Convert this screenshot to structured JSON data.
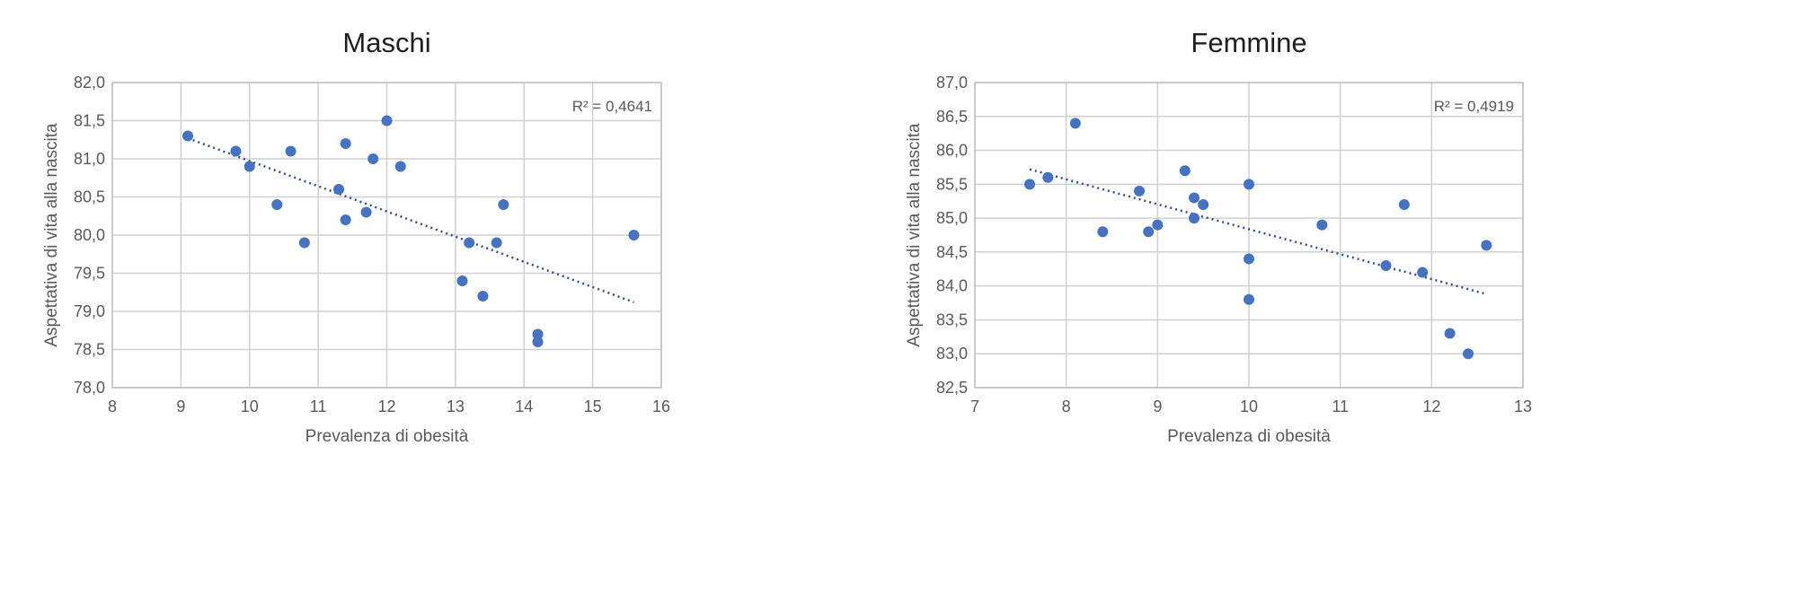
{
  "colors": {
    "points": "#4472c4",
    "trendline": "#2e4e8c",
    "grid": "#d0d0d0"
  },
  "chart_data": [
    {
      "type": "scatter",
      "title": "Maschi",
      "xlabel": "Prevalenza di obesità",
      "ylabel": "Aspettativa di vita alla nascita",
      "xlim": [
        8,
        16
      ],
      "ylim": [
        78,
        82
      ],
      "x_ticks": [
        "8",
        "9",
        "10",
        "11",
        "12",
        "13",
        "14",
        "15",
        "16"
      ],
      "y_ticks": [
        "78,0",
        "78,5",
        "79,0",
        "79,5",
        "80,0",
        "80,5",
        "81,0",
        "81,5",
        "82,0"
      ],
      "grid": true,
      "r2_label": "R² = 0,4641",
      "trendline": {
        "x": [
          9.1,
          15.6
        ],
        "y": [
          81.27,
          79.12
        ]
      },
      "points": [
        {
          "x": 9.1,
          "y": 81.3
        },
        {
          "x": 9.8,
          "y": 81.1
        },
        {
          "x": 10.0,
          "y": 80.9
        },
        {
          "x": 10.4,
          "y": 80.4
        },
        {
          "x": 10.6,
          "y": 81.1
        },
        {
          "x": 10.8,
          "y": 79.9
        },
        {
          "x": 11.3,
          "y": 80.6
        },
        {
          "x": 11.4,
          "y": 81.2
        },
        {
          "x": 11.4,
          "y": 80.2
        },
        {
          "x": 11.7,
          "y": 80.3
        },
        {
          "x": 11.8,
          "y": 81.0
        },
        {
          "x": 12.0,
          "y": 81.5
        },
        {
          "x": 12.2,
          "y": 80.9
        },
        {
          "x": 13.1,
          "y": 79.4
        },
        {
          "x": 13.2,
          "y": 79.9
        },
        {
          "x": 13.4,
          "y": 79.2
        },
        {
          "x": 13.6,
          "y": 79.9
        },
        {
          "x": 13.7,
          "y": 80.4
        },
        {
          "x": 14.2,
          "y": 78.7
        },
        {
          "x": 14.2,
          "y": 78.6
        },
        {
          "x": 15.6,
          "y": 80.0
        }
      ]
    },
    {
      "type": "scatter",
      "title": "Femmine",
      "xlabel": "Prevalenza di obesità",
      "ylabel": "Aspettativa di vita alla nascita",
      "xlim": [
        7,
        13
      ],
      "ylim": [
        82.5,
        87
      ],
      "x_ticks": [
        "7",
        "8",
        "9",
        "10",
        "11",
        "12",
        "13"
      ],
      "y_ticks": [
        "82,5",
        "83,0",
        "83,5",
        "84,0",
        "84,5",
        "85,0",
        "85,5",
        "86,0",
        "86,5",
        "87,0"
      ],
      "grid": true,
      "r2_label": "R² = 0,4919",
      "trendline": {
        "x": [
          7.6,
          12.6
        ],
        "y": [
          85.72,
          83.88
        ]
      },
      "points": [
        {
          "x": 7.6,
          "y": 85.5
        },
        {
          "x": 7.8,
          "y": 85.6
        },
        {
          "x": 8.1,
          "y": 86.4
        },
        {
          "x": 8.4,
          "y": 84.8
        },
        {
          "x": 8.8,
          "y": 85.4
        },
        {
          "x": 8.9,
          "y": 84.8
        },
        {
          "x": 9.0,
          "y": 84.9
        },
        {
          "x": 9.3,
          "y": 85.7
        },
        {
          "x": 9.4,
          "y": 85.3
        },
        {
          "x": 9.4,
          "y": 85.0
        },
        {
          "x": 9.5,
          "y": 85.2
        },
        {
          "x": 10.0,
          "y": 85.5
        },
        {
          "x": 10.0,
          "y": 84.4
        },
        {
          "x": 10.0,
          "y": 83.8
        },
        {
          "x": 10.8,
          "y": 84.9
        },
        {
          "x": 11.5,
          "y": 84.3
        },
        {
          "x": 11.7,
          "y": 85.2
        },
        {
          "x": 11.9,
          "y": 84.2
        },
        {
          "x": 12.2,
          "y": 83.3
        },
        {
          "x": 12.4,
          "y": 83.0
        },
        {
          "x": 12.6,
          "y": 84.6
        }
      ]
    }
  ]
}
